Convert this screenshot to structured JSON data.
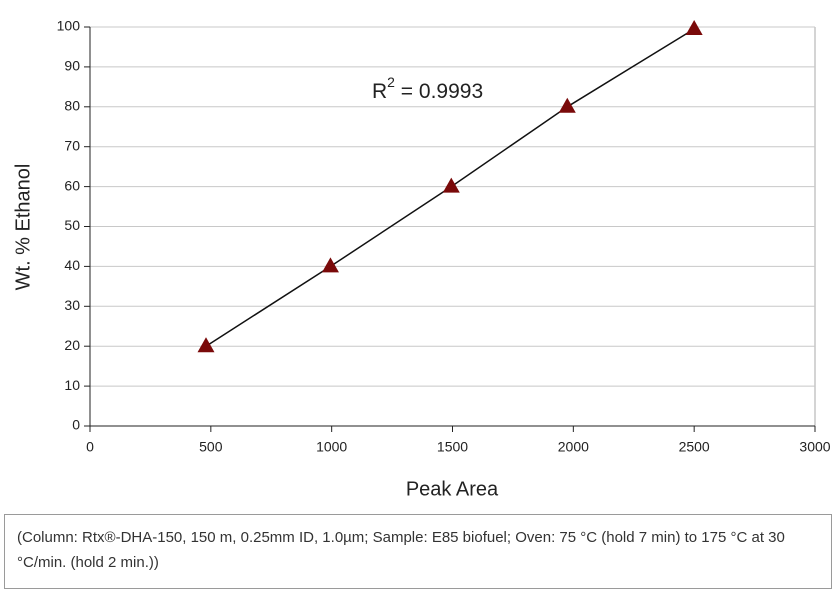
{
  "chart_data": {
    "type": "scatter",
    "x": [
      480,
      995,
      1495,
      1975,
      2500
    ],
    "values": [
      20,
      40,
      60,
      80,
      99.5
    ],
    "color": "#7a0a0a",
    "line": true,
    "line_color": "#111111",
    "xlabel": "Peak Area",
    "ylabel": "Wt. % Ethanol",
    "xlim": [
      0,
      3000
    ],
    "xticks": [
      0,
      500,
      1000,
      1500,
      2000,
      2500,
      3000
    ],
    "ylim": [
      0,
      100
    ],
    "yticks": [
      0,
      10,
      20,
      30,
      40,
      50,
      60,
      70,
      80,
      90,
      100
    ],
    "grid": true,
    "annotation": {
      "base": "R",
      "superscript": "2",
      "text": " = 0.9993"
    }
  },
  "caption": "(Column: Rtx®-DHA-150, 150 m, 0.25mm ID, 1.0µm; Sample: E85 biofuel; Oven: 75 °C (hold 7 min) to 175 °C at 30 °C/min. (hold 2 min.))"
}
